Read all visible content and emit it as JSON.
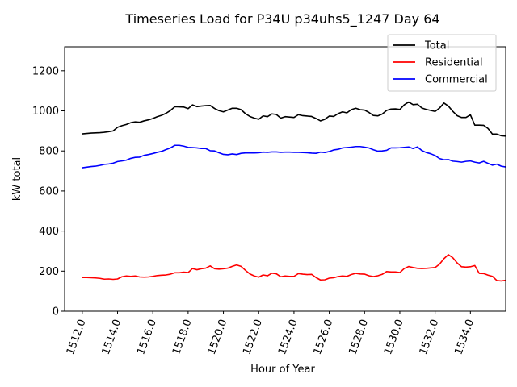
{
  "chart_data": {
    "type": "line",
    "title": "Timeseries Load for P34U p34uhs5_1247  Day 64",
    "xlabel": "Hour of Year",
    "ylabel": "kW total",
    "xlim": [
      1511.0,
      1536.0
    ],
    "ylim": [
      0,
      1320
    ],
    "xticks": [
      1512,
      1514,
      1516,
      1518,
      1520,
      1522,
      1524,
      1526,
      1528,
      1530,
      1532,
      1534
    ],
    "xtick_labels": [
      "1512.0",
      "1514.0",
      "1516.0",
      "1518.0",
      "1520.0",
      "1522.0",
      "1524.0",
      "1526.0",
      "1528.0",
      "1530.0",
      "1532.0",
      "1534.0"
    ],
    "yticks": [
      0,
      200,
      400,
      600,
      800,
      1000,
      1200
    ],
    "ytick_labels": [
      "0",
      "200",
      "400",
      "600",
      "800",
      "1000",
      "1200"
    ],
    "legend_position": "top-right",
    "x_start": 1512.0,
    "x_step": 0.25,
    "series": [
      {
        "name": "Total",
        "color": "#000000",
        "values": [
          885,
          887,
          889,
          890,
          891,
          893,
          896,
          900,
          918,
          926,
          932,
          941,
          945,
          943,
          950,
          955,
          962,
          971,
          978,
          988,
          1002,
          1021,
          1020,
          1019,
          1011,
          1030,
          1021,
          1024,
          1026,
          1027,
          1012,
          1001,
          995,
          1004,
          1013,
          1013,
          1006,
          986,
          972,
          964,
          958,
          975,
          971,
          985,
          982,
          964,
          971,
          969,
          967,
          981,
          976,
          974,
          972,
          962,
          950,
          958,
          974,
          972,
          986,
          995,
          990,
          1006,
          1013,
          1006,
          1004,
          992,
          977,
          975,
          984,
          1002,
          1009,
          1010,
          1007,
          1030,
          1044,
          1031,
          1033,
          1014,
          1007,
          1002,
          997,
          1014,
          1039,
          1024,
          998,
          976,
          967,
          967,
          980,
          929,
          929,
          928,
          912,
          884,
          884,
          876,
          874
        ]
      },
      {
        "name": "Residential",
        "color": "#ff0000",
        "values": [
          168,
          168,
          167,
          166,
          164,
          160,
          161,
          159,
          161,
          172,
          176,
          174,
          176,
          171,
          170,
          171,
          174,
          178,
          180,
          181,
          185,
          192,
          192,
          195,
          193,
          213,
          207,
          212,
          215,
          226,
          212,
          210,
          212,
          215,
          224,
          231,
          224,
          204,
          186,
          176,
          170,
          181,
          177,
          190,
          187,
          172,
          176,
          174,
          174,
          188,
          185,
          183,
          184,
          168,
          156,
          157,
          165,
          167,
          173,
          176,
          174,
          183,
          189,
          186,
          185,
          177,
          173,
          177,
          184,
          198,
          196,
          196,
          193,
          213,
          223,
          218,
          214,
          213,
          214,
          216,
          218,
          235,
          262,
          282,
          267,
          241,
          222,
          220,
          222,
          228,
          189,
          188,
          180,
          174,
          153,
          151,
          154
        ]
      },
      {
        "name": "Commercial",
        "color": "#0000ff",
        "values": [
          716,
          719,
          722,
          724,
          728,
          733,
          735,
          739,
          747,
          750,
          754,
          763,
          768,
          769,
          778,
          782,
          787,
          793,
          798,
          807,
          815,
          828,
          828,
          824,
          818,
          817,
          815,
          812,
          812,
          801,
          800,
          791,
          783,
          781,
          785,
          782,
          788,
          790,
          790,
          790,
          791,
          794,
          793,
          795,
          795,
          793,
          794,
          794,
          793,
          793,
          792,
          791,
          789,
          788,
          794,
          792,
          797,
          805,
          808,
          815,
          817,
          819,
          822,
          822,
          819,
          815,
          806,
          799,
          800,
          803,
          815,
          815,
          816,
          818,
          820,
          812,
          820,
          802,
          792,
          786,
          777,
          762,
          756,
          757,
          749,
          747,
          744,
          748,
          750,
          744,
          740,
          748,
          738,
          729,
          734,
          724,
          720
        ]
      }
    ]
  }
}
